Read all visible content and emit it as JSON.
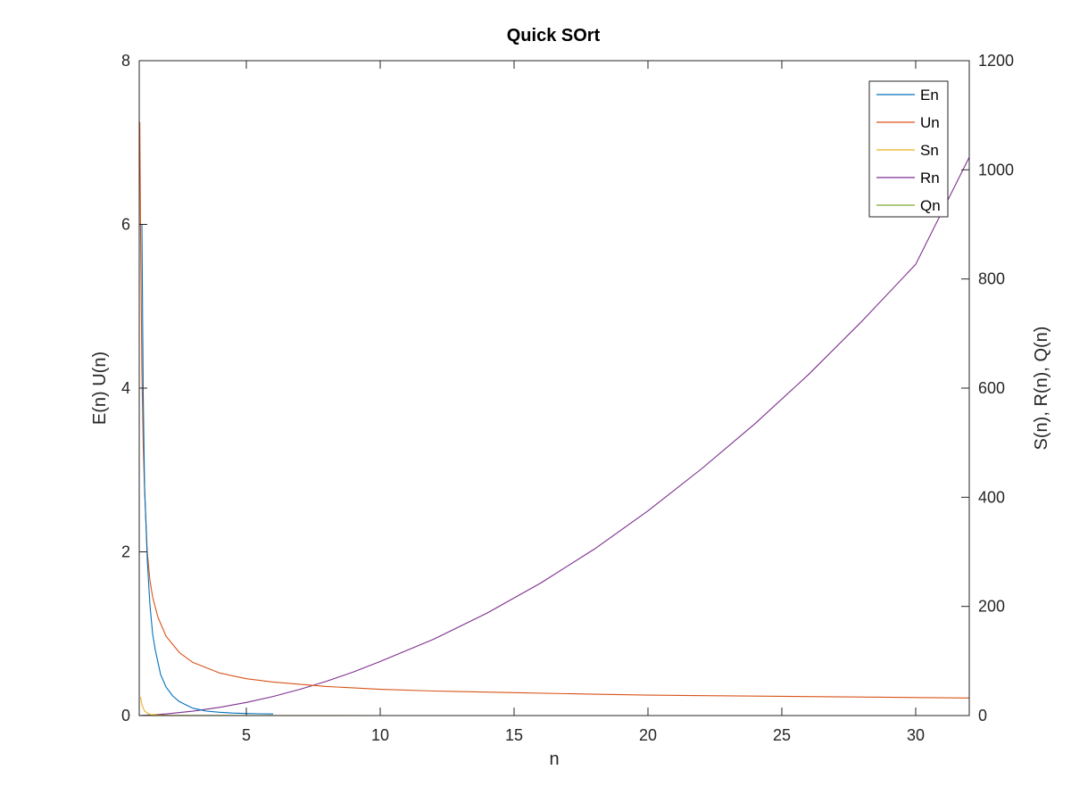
{
  "chart_data": {
    "type": "line",
    "title": "Quick SOrt",
    "xlabel": "n",
    "ylabel_left": "E(n) U(n)",
    "ylabel_right": "S(n), R(n), Q(n)",
    "xlim": [
      1,
      32
    ],
    "ylim_left": [
      0,
      8
    ],
    "ylim_right": [
      0,
      1200
    ],
    "xticks": [
      5,
      10,
      15,
      20,
      25,
      30
    ],
    "yticks_left": [
      0,
      2,
      4,
      6,
      8
    ],
    "yticks_right": [
      0,
      200,
      400,
      600,
      800,
      1000,
      1200
    ],
    "grid": false,
    "legend_position": "top-right",
    "series": [
      {
        "name": "En",
        "axis": "left",
        "color": "#0072BD",
        "x": [
          1.1,
          1.15,
          1.2,
          1.3,
          1.4,
          1.5,
          1.6,
          1.8,
          2,
          2.25,
          2.5,
          3,
          3.5,
          4,
          4.5,
          5,
          5.5,
          6
        ],
        "y": [
          6.0,
          3.9,
          2.8,
          1.9,
          1.35,
          1.0,
          0.8,
          0.5,
          0.35,
          0.24,
          0.17,
          0.09,
          0.055,
          0.04,
          0.03,
          0.025,
          0.022,
          0.02
        ]
      },
      {
        "name": "Un",
        "axis": "left",
        "color": "#D95319",
        "x": [
          1.02,
          1.05,
          1.1,
          1.15,
          1.2,
          1.3,
          1.4,
          1.5,
          1.7,
          2,
          2.5,
          3,
          4,
          5,
          6,
          8,
          10,
          12,
          15,
          18,
          20,
          25,
          30,
          32
        ],
        "y": [
          7.25,
          5.9,
          4.2,
          3.3,
          2.75,
          2.0,
          1.65,
          1.45,
          1.2,
          0.97,
          0.77,
          0.65,
          0.52,
          0.45,
          0.41,
          0.355,
          0.32,
          0.3,
          0.28,
          0.26,
          0.25,
          0.235,
          0.22,
          0.215
        ]
      },
      {
        "name": "Sn",
        "axis": "right",
        "color": "#EDB120",
        "x": [
          1.05,
          1.1,
          1.2,
          1.4,
          2,
          3,
          5,
          10,
          20,
          32
        ],
        "y": [
          34,
          20,
          8,
          2,
          0.5,
          0.2,
          0.1,
          0.05,
          0.02,
          0.01
        ]
      },
      {
        "name": "Rn",
        "axis": "right",
        "color": "#7E2F8E",
        "x": [
          1,
          2,
          3,
          4,
          5,
          6,
          7,
          8,
          9,
          10,
          12,
          14,
          16,
          18,
          20,
          22,
          24,
          26,
          28,
          30,
          32
        ],
        "y": [
          0,
          3,
          8,
          15,
          24,
          35,
          48,
          63,
          80,
          99,
          140,
          188,
          243,
          305,
          375,
          452,
          535,
          625,
          723,
          827,
          1023
        ]
      },
      {
        "name": "Qn",
        "axis": "right",
        "color": "#77AC30",
        "x": [
          1,
          2,
          5,
          10,
          20,
          32
        ],
        "y": [
          0.2,
          0.1,
          0.05,
          0.02,
          0.01,
          0.01
        ]
      }
    ]
  }
}
